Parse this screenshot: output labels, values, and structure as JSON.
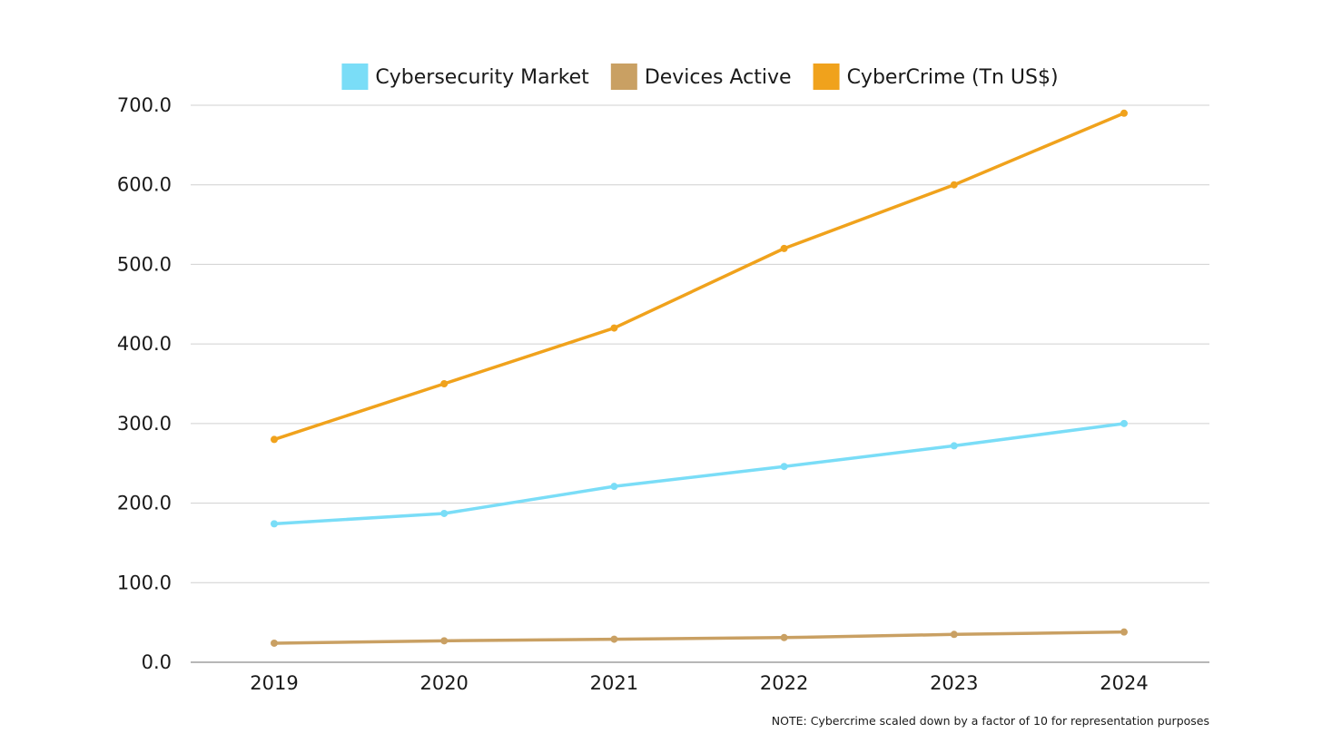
{
  "chart_data": {
    "type": "line",
    "title": "",
    "xlabel": "",
    "ylabel": "",
    "categories": [
      "2019",
      "2020",
      "2021",
      "2022",
      "2023",
      "2024"
    ],
    "ylim": [
      0,
      700
    ],
    "yticks": [
      "0.0",
      "100.0",
      "200.0",
      "300.0",
      "400.0",
      "500.0",
      "600.0",
      "700.0"
    ],
    "grid": true,
    "legend_position": "top",
    "series": [
      {
        "name": "Cybersecurity Market",
        "color": "#7ADDF7",
        "values": [
          174,
          187,
          221,
          246,
          272,
          300
        ]
      },
      {
        "name": "Devices Active",
        "color": "#C9A063",
        "values": [
          24,
          27,
          29,
          31,
          35,
          38
        ]
      },
      {
        "name": "CyberCrime (Tn US$)",
        "color": "#F0A21C",
        "values": [
          280,
          350,
          420,
          520,
          600,
          690
        ]
      }
    ],
    "annotations": [
      "NOTE: Cybercrime scaled down by a factor of 10 for representation purposes"
    ]
  }
}
